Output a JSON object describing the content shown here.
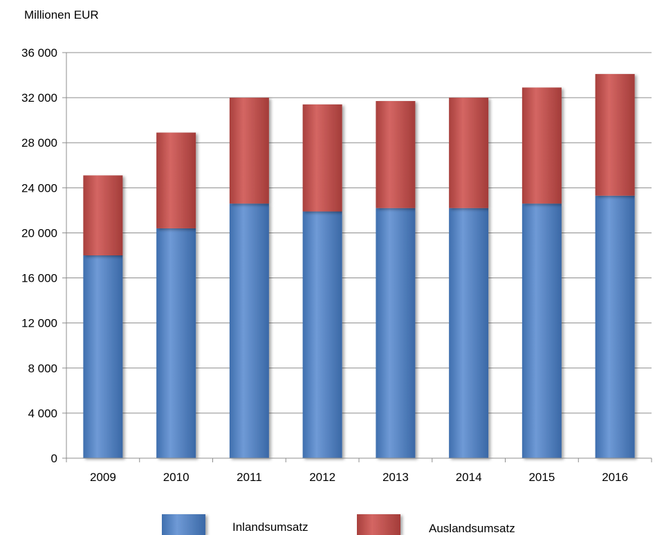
{
  "chart_data": {
    "type": "bar",
    "stacked": true,
    "ylabel": "Millionen EUR",
    "categories": [
      "2009",
      "2010",
      "2011",
      "2012",
      "2013",
      "2014",
      "2015",
      "2016"
    ],
    "series": [
      {
        "name": "Inlandsumsatz",
        "color": "#4f81bd",
        "values": [
          18000,
          20400,
          22600,
          21900,
          22200,
          22200,
          22600,
          23300
        ]
      },
      {
        "name": "Auslandsumsatz",
        "color": "#c0504d",
        "values": [
          7100,
          8500,
          9400,
          9500,
          9500,
          9800,
          10300,
          10800
        ]
      }
    ],
    "ylim": [
      0,
      36000
    ],
    "yticks": [
      "0",
      "4 000",
      "8 000",
      "12 000",
      "16 000",
      "20 000",
      "24 000",
      "28 000",
      "32 000",
      "36 000"
    ],
    "ytick_values": [
      0,
      4000,
      8000,
      12000,
      16000,
      20000,
      24000,
      28000,
      32000,
      36000
    ],
    "grid": true,
    "legend_position": "bottom"
  }
}
